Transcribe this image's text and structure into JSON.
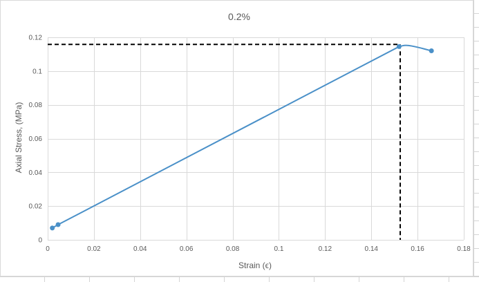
{
  "chart_data": {
    "type": "scatter",
    "title": "0.2%",
    "xlabel": "Strain (ϵ)",
    "ylabel": "Axial Stress, (MPa)",
    "xlim": [
      0,
      0.18
    ],
    "ylim": [
      0,
      0.12
    ],
    "x_ticks": [
      0,
      0.02,
      0.04,
      0.06,
      0.08,
      0.1,
      0.12,
      0.14,
      0.16,
      0.18
    ],
    "x_tick_labels": [
      "0",
      "0.02",
      "0.04",
      "0.06",
      "0.08",
      "0.1",
      "0.12",
      "0.14",
      "0.16",
      "0.18"
    ],
    "y_ticks": [
      0,
      0.02,
      0.04,
      0.06,
      0.08,
      0.1,
      0.12
    ],
    "y_tick_labels": [
      "0",
      "0.02",
      "0.04",
      "0.06",
      "0.08",
      "0.1",
      "0.12"
    ],
    "grid": "vertical and horizontal",
    "series": [
      {
        "color": "#4a90c8",
        "markers": true,
        "points": [
          {
            "x": 0.002,
            "y": 0.007
          },
          {
            "x": 0.0045,
            "y": 0.009
          },
          {
            "x": 0.152,
            "y": 0.1145
          },
          {
            "x": 0.166,
            "y": 0.112
          }
        ],
        "curve": [
          {
            "x": 0.002,
            "y": 0.007
          },
          {
            "x": 0.0045,
            "y": 0.009
          },
          {
            "x": 0.152,
            "y": 0.1145
          },
          {
            "x": 0.155,
            "y": 0.1155
          },
          {
            "x": 0.16,
            "y": 0.1142
          },
          {
            "x": 0.166,
            "y": 0.112
          }
        ]
      }
    ],
    "reference_lines": [
      {
        "style": "dashed",
        "color": "#000000",
        "from": {
          "x": 0,
          "y": 0.1158
        },
        "to": {
          "x": 0.1525,
          "y": 0.1158
        }
      },
      {
        "style": "dashed",
        "color": "#000000",
        "from": {
          "x": 0.1525,
          "y": 0.1158
        },
        "to": {
          "x": 0.1525,
          "y": 0
        }
      }
    ]
  }
}
